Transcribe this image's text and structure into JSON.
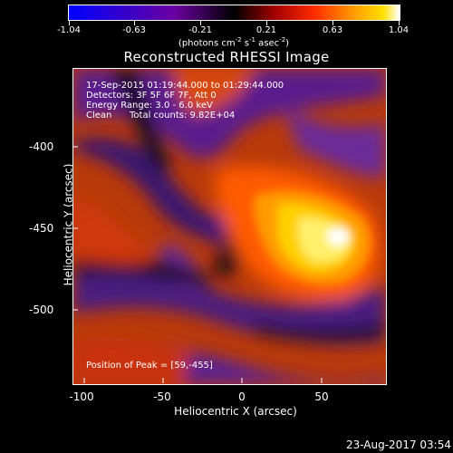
{
  "colorbar": {
    "ticks": [
      "-1.04",
      "-0.63",
      "-0.21",
      "0.21",
      "0.63",
      "1.04"
    ],
    "units_prefix": "(photons cm",
    "units_exp1": "-2",
    "units_mid1": " s",
    "units_exp2": "-1",
    "units_mid2": " asec",
    "units_exp3": "-2",
    "units_suffix": ")"
  },
  "title": "Reconstructed RHESSI Image",
  "annotations": {
    "time_range": "17-Sep-2015 01:19:44.000 to 01:29:44.000",
    "detectors": "Detectors: 3F 5F 6F 7F, Att 0",
    "energy": "Energy Range: 3.0 - 6.0 keV",
    "method": "Clean",
    "counts": "Total counts: 9.82E+04",
    "peak": "Position of Peak = [59,-455]"
  },
  "axes": {
    "x_label": "Heliocentric X (arcsec)",
    "y_label": "Heliocentric Y (arcsec)",
    "x_ticks": [
      "-100",
      "-50",
      "0",
      "50"
    ],
    "y_ticks": [
      "-400",
      "-450",
      "-500"
    ]
  },
  "footer_date": "23-Aug-2017 03:54"
}
